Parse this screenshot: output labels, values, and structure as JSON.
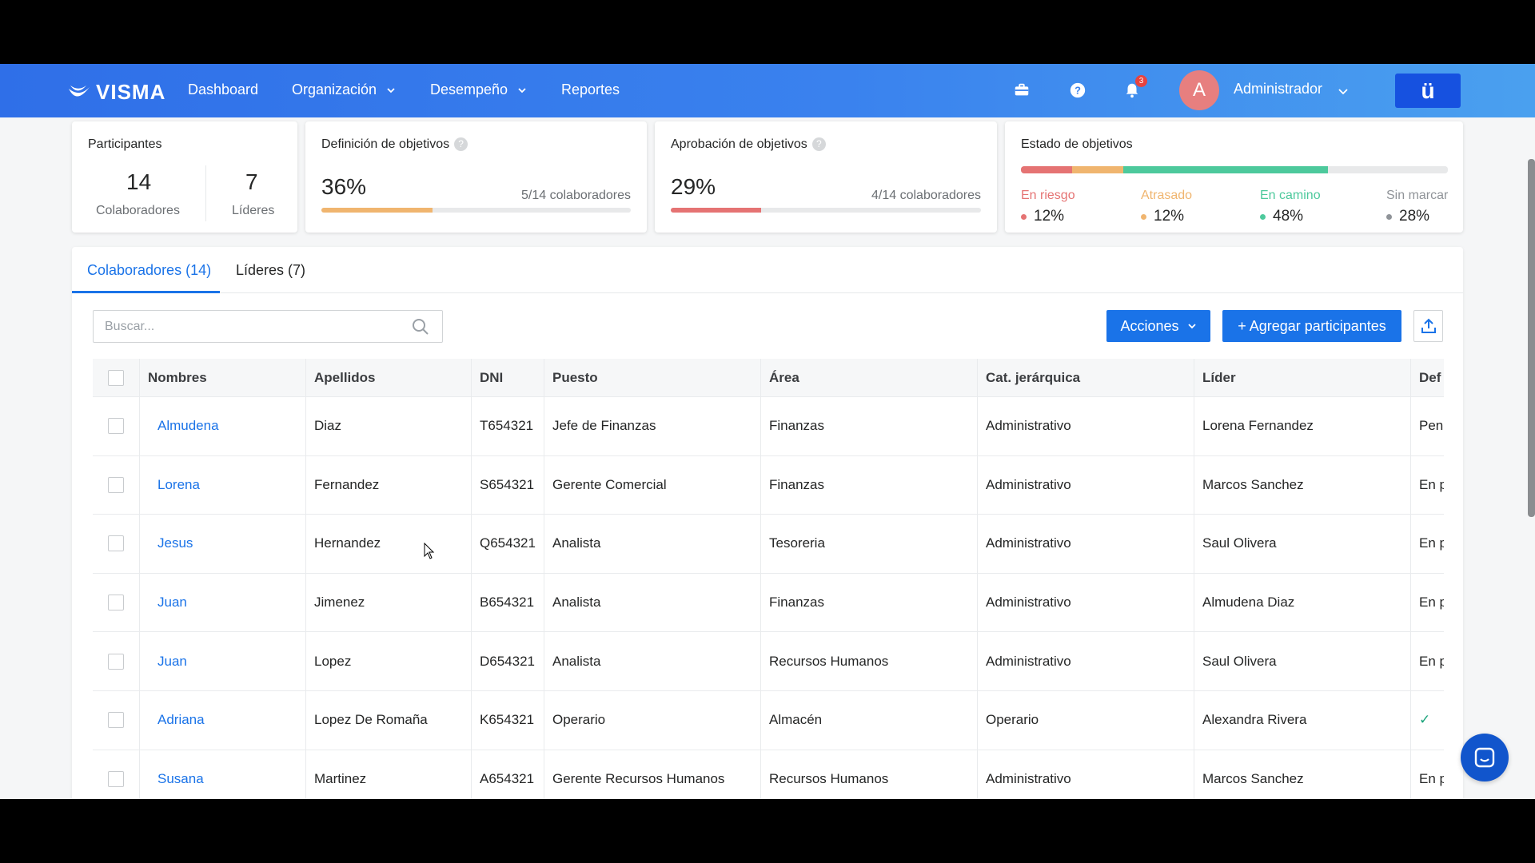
{
  "nav": {
    "brand": "VISMA",
    "links": [
      {
        "label": "Dashboard",
        "has_dropdown": false
      },
      {
        "label": "Organización",
        "has_dropdown": true
      },
      {
        "label": "Desempeño",
        "has_dropdown": true
      },
      {
        "label": "Reportes",
        "has_dropdown": false
      }
    ],
    "icons": [
      "briefcase-icon",
      "help-circle-icon",
      "bell-icon"
    ],
    "notification_count": "3",
    "user_initial": "A",
    "user_name": "Administrador",
    "app_button": "ü"
  },
  "cards": {
    "participantes": {
      "title": "Participantes",
      "colaboradores_value": "14",
      "colaboradores_label": "Colaboradores",
      "lideres_value": "7",
      "lideres_label": "Líderes"
    },
    "definicion": {
      "title": "Definición de objetivos",
      "percent": "36%",
      "progress": 0.36,
      "detail": "5/14 colaboradores",
      "color": "#f0b56f"
    },
    "aprobacion": {
      "title": "Aprobación de objetivos",
      "percent": "29%",
      "progress": 0.29,
      "detail": "4/14 colaboradores",
      "color": "#e57373"
    },
    "estado": {
      "title": "Estado de objetivos",
      "segments": [
        {
          "label": "En riesgo",
          "value": "12%",
          "fraction": 0.12,
          "color": "#e57373"
        },
        {
          "label": "Atrasado",
          "value": "12%",
          "fraction": 0.12,
          "color": "#f0b56f"
        },
        {
          "label": "En camino",
          "value": "48%",
          "fraction": 0.48,
          "color": "#4dc99c"
        },
        {
          "label": "Sin marcar",
          "value": "28%",
          "fraction": 0.28,
          "color": "#8f9398"
        }
      ]
    }
  },
  "tabs": [
    {
      "label": "Colaboradores (14)",
      "active": true
    },
    {
      "label": "Líderes (7)",
      "active": false
    }
  ],
  "toolbar": {
    "search_placeholder": "Buscar...",
    "actions_label": "Acciones",
    "add_label": "+ Agregar participantes"
  },
  "table": {
    "headers": [
      "Nombres",
      "Apellidos",
      "DNI",
      "Puesto",
      "Área",
      "Cat. jerárquica",
      "Líder",
      "Def"
    ],
    "rows": [
      {
        "nombre": "Almudena",
        "apellido": "Diaz",
        "dni": "T654321",
        "puesto": "Jefe de Finanzas",
        "area": "Finanzas",
        "cat": "Administrativo",
        "lider": "Lorena Fernandez",
        "def": "Pen"
      },
      {
        "nombre": "Lorena",
        "apellido": "Fernandez",
        "dni": "S654321",
        "puesto": "Gerente Comercial",
        "area": "Finanzas",
        "cat": "Administrativo",
        "lider": "Marcos Sanchez",
        "def": "En p"
      },
      {
        "nombre": "Jesus",
        "apellido": "Hernandez",
        "dni": "Q654321",
        "puesto": "Analista",
        "area": "Tesoreria",
        "cat": "Administrativo",
        "lider": "Saul Olivera",
        "def": "En p"
      },
      {
        "nombre": "Juan",
        "apellido": "Jimenez",
        "dni": "B654321",
        "puesto": "Analista",
        "area": "Finanzas",
        "cat": "Administrativo",
        "lider": "Almudena Diaz",
        "def": "En p"
      },
      {
        "nombre": "Juan",
        "apellido": "Lopez",
        "dni": "D654321",
        "puesto": "Analista",
        "area": "Recursos Humanos",
        "cat": "Administrativo",
        "lider": "Saul Olivera",
        "def": "En p"
      },
      {
        "nombre": "Adriana",
        "apellido": "Lopez De Romaña",
        "dni": "K654321",
        "puesto": "Operario",
        "area": "Almacén",
        "cat": "Operario",
        "lider": "Alexandra Rivera",
        "def": "✓"
      },
      {
        "nombre": "Susana",
        "apellido": "Martinez",
        "dni": "A654321",
        "puesto": "Gerente Recursos Humanos",
        "area": "Recursos Humanos",
        "cat": "Administrativo",
        "lider": "Marcos Sanchez",
        "def": "En p"
      }
    ]
  }
}
